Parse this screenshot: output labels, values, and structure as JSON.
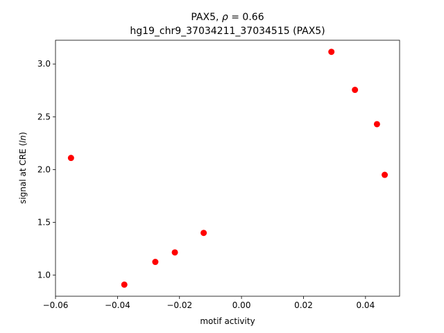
{
  "chart_data": {
    "type": "scatter",
    "title_prefix": "PAX5, ",
    "title_rho": "ρ",
    "title_suffix": " = 0.66",
    "subtitle": "hg19_chr9_37034211_37034515 (PAX5)",
    "xlabel": "motif activity",
    "ylabel_prefix": "signal at CRE (",
    "ylabel_italic": "ln",
    "ylabel_suffix": ")",
    "xlim": [
      -0.06,
      0.051
    ],
    "ylim": [
      0.8,
      3.225
    ],
    "x_ticks": [
      -0.06,
      -0.04,
      -0.02,
      0.0,
      0.02,
      0.04
    ],
    "x_tick_labels": [
      "−0.06",
      "−0.04",
      "−0.02",
      "0.00",
      "0.02",
      "0.04"
    ],
    "y_ticks": [
      1.0,
      1.5,
      2.0,
      2.5,
      3.0
    ],
    "y_tick_labels": [
      "1.0",
      "1.5",
      "2.0",
      "2.5",
      "3.0"
    ],
    "grid": false,
    "marker_color": "#ff0000",
    "points": [
      {
        "x": -0.055,
        "y": 2.11
      },
      {
        "x": -0.0378,
        "y": 0.91
      },
      {
        "x": -0.0278,
        "y": 1.125
      },
      {
        "x": -0.0215,
        "y": 1.215
      },
      {
        "x": -0.0122,
        "y": 1.4
      },
      {
        "x": 0.029,
        "y": 3.115
      },
      {
        "x": 0.0366,
        "y": 2.755
      },
      {
        "x": 0.0437,
        "y": 2.43
      },
      {
        "x": 0.0462,
        "y": 1.95
      }
    ]
  }
}
